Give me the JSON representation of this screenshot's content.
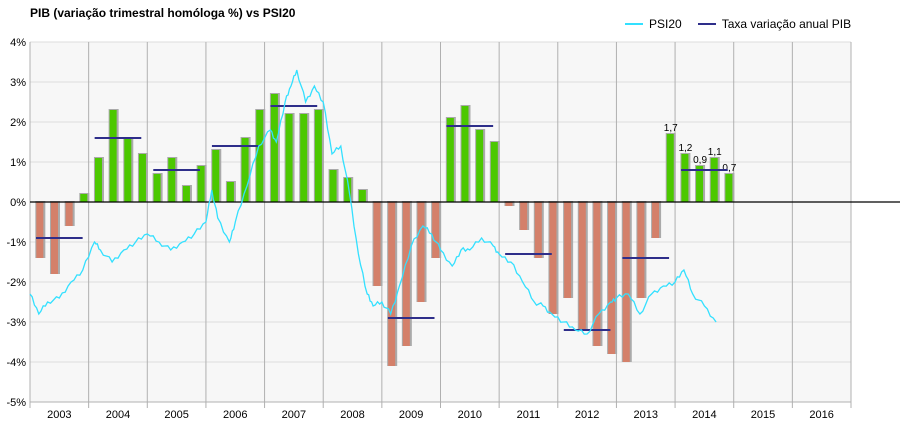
{
  "chart_data": {
    "type": "bar",
    "title": "PIB  (variação trimestral homóloga %) vs PSI20",
    "xlabel": "",
    "ylabel": "",
    "ylim": [
      -5,
      4
    ],
    "y_ticks": [
      "4%",
      "3%",
      "2%",
      "1%",
      "0%",
      "-1%",
      "-2%",
      "-3%",
      "-4%",
      "-5%"
    ],
    "y_tick_values": [
      4,
      3,
      2,
      1,
      0,
      -1,
      -2,
      -3,
      -4,
      -5
    ],
    "categories": [
      "2003",
      "2004",
      "2005",
      "2006",
      "2007",
      "2008",
      "2009",
      "2010",
      "2011",
      "2012",
      "2013",
      "2014",
      "2015",
      "2016"
    ],
    "grid": true,
    "legend_position": "top-right",
    "legend": [
      {
        "name": "PSI20",
        "color": "#33e0ff"
      },
      {
        "name": "Taxa variação anual PIB",
        "color": "#2e2e8a"
      }
    ],
    "colors": {
      "positive_bar": "#4cc800",
      "negative_bar": "#d4806a",
      "bar_shadow": "#aaaaaa",
      "annual_line": "#2e2e8a",
      "psi20_line": "#33e0ff",
      "plot_bg": "#f7f7f7",
      "grid": "#dddddd",
      "year_divider": "#b0b0b0"
    },
    "series": [
      {
        "name": "PIB variação trimestral homóloga (%)",
        "type": "bar",
        "values": [
          -1.4,
          -1.8,
          -0.6,
          0.2,
          1.1,
          2.3,
          1.6,
          1.2,
          0.7,
          1.1,
          0.4,
          0.9,
          1.3,
          0.5,
          1.6,
          2.3,
          2.7,
          2.2,
          2.2,
          2.3,
          0.8,
          0.6,
          0.3,
          -2.1,
          -4.1,
          -3.6,
          -2.5,
          -1.4,
          2.1,
          2.4,
          1.8,
          1.5,
          -0.1,
          -0.7,
          -1.4,
          -2.8,
          -2.4,
          -3.2,
          -3.6,
          -3.8,
          -4.0,
          -2.4,
          -0.9,
          1.7,
          1.2,
          0.9,
          1.1,
          0.7
        ],
        "data_labels": {
          "43": "1,7",
          "44": "1,2",
          "45": "0,9",
          "46": "1,1",
          "47": "0,7"
        }
      },
      {
        "name": "Taxa variação anual PIB",
        "type": "step",
        "years": [
          "2003",
          "2004",
          "2005",
          "2006",
          "2007",
          "2009",
          "2010",
          "2011",
          "2012",
          "2013",
          "2014"
        ],
        "values": [
          -0.9,
          1.6,
          0.8,
          1.4,
          2.4,
          -2.9,
          1.9,
          -1.3,
          -3.2,
          -1.4,
          0.8
        ]
      },
      {
        "name": "PSI20",
        "type": "line",
        "note": "rescaled index, approximate monthly shape",
        "x_year_fraction": [
          2003.0,
          2003.15,
          2003.3,
          2003.5,
          2003.7,
          2003.9,
          2004.1,
          2004.2,
          2004.4,
          2004.6,
          2004.8,
          2005.0,
          2005.2,
          2005.4,
          2005.6,
          2005.8,
          2006.0,
          2006.1,
          2006.2,
          2006.4,
          2006.5,
          2006.7,
          2006.9,
          2007.1,
          2007.2,
          2007.35,
          2007.45,
          2007.55,
          2007.7,
          2007.85,
          2008.0,
          2008.15,
          2008.3,
          2008.45,
          2008.6,
          2008.75,
          2008.85,
          2009.0,
          2009.15,
          2009.3,
          2009.5,
          2009.7,
          2009.85,
          2010.0,
          2010.2,
          2010.35,
          2010.5,
          2010.7,
          2010.9,
          2011.0,
          2011.2,
          2011.4,
          2011.6,
          2011.75,
          2011.9,
          2012.1,
          2012.3,
          2012.5,
          2012.7,
          2012.9,
          2013.0,
          2013.2,
          2013.4,
          2013.6,
          2013.8,
          2014.0,
          2014.15,
          2014.3,
          2014.5,
          2014.7
        ],
        "y": [
          -2.3,
          -2.8,
          -2.5,
          -2.4,
          -2.0,
          -1.7,
          -1.0,
          -1.2,
          -1.5,
          -1.2,
          -1.0,
          -0.8,
          -1.0,
          -1.2,
          -1.0,
          -0.8,
          -0.5,
          0.3,
          -0.4,
          -1.0,
          -0.5,
          0.4,
          1.4,
          1.8,
          1.5,
          2.5,
          2.9,
          3.3,
          2.5,
          2.9,
          2.5,
          1.2,
          1.4,
          0.2,
          -1.3,
          -2.3,
          -2.6,
          -2.5,
          -2.8,
          -2.1,
          -1.1,
          -0.6,
          -0.8,
          -1.2,
          -1.6,
          -1.2,
          -1.2,
          -0.9,
          -1.1,
          -1.3,
          -1.5,
          -2.0,
          -2.5,
          -2.6,
          -2.8,
          -3.0,
          -3.2,
          -3.3,
          -2.8,
          -2.5,
          -2.4,
          -2.3,
          -2.8,
          -2.3,
          -2.1,
          -2.0,
          -1.7,
          -2.3,
          -2.6,
          -3.0
        ]
      }
    ]
  }
}
